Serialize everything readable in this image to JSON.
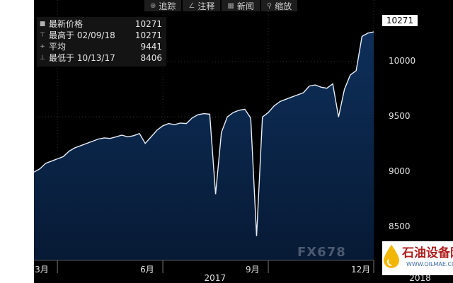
{
  "toolbar": {
    "items": [
      {
        "label": "追踪",
        "icon": "crosshair-icon"
      },
      {
        "label": "注释",
        "icon": "pencil-icon"
      },
      {
        "label": "新闻",
        "icon": "newspaper-icon"
      },
      {
        "label": "缩放",
        "icon": "zoom-icon"
      }
    ]
  },
  "legend": {
    "rows": [
      {
        "label": "最新价格",
        "value": "10271",
        "marker": "■"
      },
      {
        "label": "最高于 02/09/18",
        "value": "10271",
        "marker": "⊤"
      },
      {
        "label": "平均",
        "value": "9441",
        "marker": "+"
      },
      {
        "label": "最低于 10/13/17",
        "value": "8406",
        "marker": "⊥"
      }
    ]
  },
  "current_value_label": "10271",
  "watermark": {
    "title": "石油设备网",
    "url": "WWW.OILMAE.COM",
    "faint_logo": "FX678"
  },
  "colors": {
    "fill_top": "#0e2f5a",
    "fill_bottom": "#071a35",
    "line": "#e8eef7",
    "background": "#000000"
  },
  "chart_data": {
    "type": "area",
    "title": "",
    "xlabel": "",
    "ylabel": "",
    "ylim": [
      8200,
      10560
    ],
    "yticks": [
      8500,
      9000,
      9500,
      10000
    ],
    "xticks": [
      {
        "label": "3月",
        "x": 4
      },
      {
        "label": "6月",
        "x": 22
      },
      {
        "label": "9月",
        "x": 40
      },
      {
        "label": "12月",
        "x": 58
      }
    ],
    "year_labels": [
      {
        "label": "2017",
        "x": 31
      },
      {
        "label": "2018",
        "x": 66
      }
    ],
    "x": [
      0,
      1,
      2,
      3,
      4,
      5,
      6,
      7,
      8,
      9,
      10,
      11,
      12,
      13,
      14,
      15,
      16,
      17,
      18,
      19,
      20,
      21,
      22,
      23,
      24,
      25,
      26,
      27,
      28,
      29,
      30,
      31,
      32,
      33,
      34,
      35,
      36,
      37,
      38,
      39,
      40,
      41,
      42,
      43,
      44,
      45,
      46,
      47,
      48,
      49,
      50,
      51,
      52,
      53,
      54,
      55,
      56,
      57,
      58,
      59,
      60,
      61,
      62,
      63,
      64,
      65,
      66,
      67,
      68,
      69
    ],
    "values": [
      9000,
      9030,
      9080,
      9100,
      9120,
      9140,
      9190,
      9220,
      9240,
      9260,
      9280,
      9300,
      9310,
      9305,
      9320,
      9335,
      9320,
      9330,
      9350,
      9260,
      9320,
      9380,
      9420,
      9440,
      9430,
      9445,
      9440,
      9490,
      9520,
      9530,
      9525,
      8800,
      9360,
      9500,
      9540,
      9560,
      9570,
      9490,
      8420,
      9500,
      9540,
      9600,
      9640,
      9660,
      9680,
      9700,
      9720,
      9780,
      9790,
      9770,
      9760,
      9800,
      9500,
      9750,
      9880,
      9920,
      10230,
      10260,
      10271,
      10271,
      10271,
      10271,
      10271,
      10271,
      10271,
      10271,
      10271,
      10271,
      10271,
      10271
    ],
    "series": [
      {
        "values_ref": "values"
      }
    ]
  }
}
